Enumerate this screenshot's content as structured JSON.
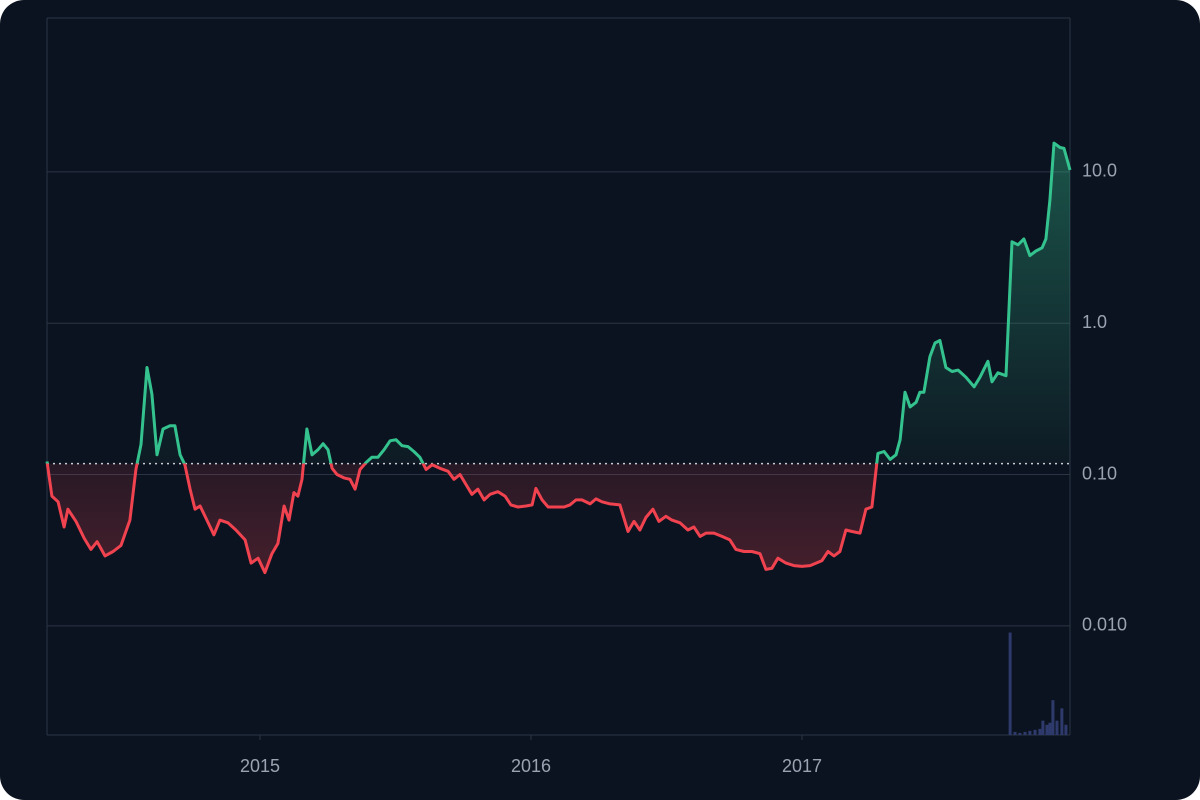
{
  "chart_data": {
    "type": "baseline",
    "log_scale": true,
    "grid": true,
    "xlim": [
      2014.214,
      2017.989
    ],
    "xticks": [
      2015,
      2016,
      2017
    ],
    "ylim": [
      0.0019,
      104
    ],
    "yticks": [
      {
        "value": 10,
        "label": "10.0"
      },
      {
        "value": 1,
        "label": "1.0"
      },
      {
        "value": 0.1,
        "label": "0.10"
      },
      {
        "value": 0.01,
        "label": "0.010"
      }
    ],
    "baseline": 0.118,
    "up_color": "#34c38f",
    "down_color": "#f0424f",
    "x": [
      2014.214,
      2014.232,
      2014.255,
      2014.277,
      2014.291,
      2014.321,
      2014.351,
      2014.376,
      2014.399,
      2014.428,
      2014.458,
      2014.487,
      2014.52,
      2014.542,
      2014.561,
      2014.583,
      2014.601,
      2014.62,
      2014.642,
      2014.668,
      2014.686,
      2014.705,
      2014.723,
      2014.742,
      2014.76,
      2014.779,
      2014.804,
      2014.83,
      2014.852,
      2014.882,
      2014.911,
      2014.945,
      2014.967,
      2014.993,
      2015.018,
      2015.044,
      2015.066,
      2015.089,
      2015.107,
      2015.125,
      2015.14,
      2015.155,
      2015.173,
      2015.192,
      2015.214,
      2015.233,
      2015.251,
      2015.266,
      2015.284,
      2015.31,
      2015.332,
      2015.351,
      2015.369,
      2015.391,
      2015.413,
      2015.435,
      2015.458,
      2015.48,
      2015.502,
      2015.524,
      2015.546,
      2015.568,
      2015.59,
      2015.613,
      2015.635,
      2015.664,
      2015.694,
      2015.716,
      2015.738,
      2015.76,
      2015.782,
      2015.804,
      2015.827,
      2015.849,
      2015.878,
      2015.904,
      2015.926,
      2015.952,
      2015.982,
      2016.004,
      2016.018,
      2016.041,
      2016.063,
      2016.092,
      2016.122,
      2016.144,
      2016.166,
      2016.188,
      2016.218,
      2016.24,
      2016.262,
      2016.292,
      2016.328,
      2016.358,
      2016.38,
      2016.402,
      2016.424,
      2016.45,
      2016.472,
      2016.498,
      2016.52,
      2016.55,
      2016.579,
      2016.601,
      2016.624,
      2016.646,
      2016.675,
      2016.705,
      2016.734,
      2016.756,
      2016.786,
      2016.815,
      2016.845,
      2016.867,
      2016.889,
      2016.911,
      2016.941,
      2016.97,
      2017.0,
      2017.03,
      2017.052,
      2017.074,
      2017.096,
      2017.118,
      2017.14,
      2017.162,
      2017.185,
      2017.214,
      2017.236,
      2017.258,
      2017.28,
      2017.303,
      2017.325,
      2017.347,
      2017.362,
      2017.38,
      2017.399,
      2017.421,
      2017.435,
      2017.45,
      2017.472,
      2017.491,
      2017.509,
      2017.531,
      2017.554,
      2017.576,
      2017.605,
      2017.635,
      2017.657,
      2017.686,
      2017.701,
      2017.723,
      2017.753,
      2017.775,
      2017.797,
      2017.819,
      2017.841,
      2017.863,
      2017.886,
      2017.9,
      2017.915,
      2017.93,
      2017.952,
      2017.967,
      2017.989
    ],
    "values": [
      0.122,
      0.072,
      0.066,
      0.045,
      0.059,
      0.049,
      0.038,
      0.032,
      0.036,
      0.029,
      0.031,
      0.034,
      0.05,
      0.108,
      0.158,
      0.51,
      0.34,
      0.135,
      0.2,
      0.21,
      0.21,
      0.135,
      0.116,
      0.08,
      0.059,
      0.062,
      0.05,
      0.04,
      0.05,
      0.048,
      0.043,
      0.037,
      0.026,
      0.028,
      0.0225,
      0.03,
      0.035,
      0.062,
      0.05,
      0.076,
      0.072,
      0.093,
      0.2,
      0.135,
      0.146,
      0.16,
      0.146,
      0.11,
      0.1,
      0.095,
      0.093,
      0.08,
      0.108,
      0.12,
      0.13,
      0.13,
      0.146,
      0.167,
      0.17,
      0.155,
      0.153,
      0.142,
      0.13,
      0.108,
      0.116,
      0.11,
      0.105,
      0.093,
      0.1,
      0.086,
      0.074,
      0.08,
      0.068,
      0.074,
      0.077,
      0.072,
      0.063,
      0.061,
      0.062,
      0.063,
      0.081,
      0.068,
      0.061,
      0.061,
      0.061,
      0.063,
      0.068,
      0.068,
      0.064,
      0.069,
      0.066,
      0.064,
      0.063,
      0.042,
      0.049,
      0.043,
      0.052,
      0.059,
      0.049,
      0.053,
      0.05,
      0.048,
      0.043,
      0.045,
      0.039,
      0.041,
      0.041,
      0.039,
      0.037,
      0.032,
      0.031,
      0.031,
      0.03,
      0.0236,
      0.024,
      0.028,
      0.026,
      0.025,
      0.0247,
      0.025,
      0.026,
      0.027,
      0.031,
      0.029,
      0.031,
      0.043,
      0.042,
      0.041,
      0.059,
      0.061,
      0.138,
      0.142,
      0.126,
      0.135,
      0.17,
      0.35,
      0.28,
      0.3,
      0.35,
      0.35,
      0.6,
      0.74,
      0.77,
      0.51,
      0.48,
      0.49,
      0.44,
      0.38,
      0.44,
      0.56,
      0.41,
      0.47,
      0.45,
      3.45,
      3.3,
      3.6,
      2.8,
      3.0,
      3.15,
      3.6,
      6.5,
      15.5,
      14.5,
      14.3,
      10.3
    ],
    "volume": {
      "color": "#2e3a6b",
      "y2lim": [
        0,
        700
      ],
      "x": [
        2017.768,
        2017.786,
        2017.804,
        2017.823,
        2017.841,
        2017.86,
        2017.878,
        2017.889,
        2017.904,
        2017.915,
        2017.926,
        2017.941,
        2017.959,
        2017.974
      ],
      "values": [
        100,
        3,
        2,
        3,
        4,
        5,
        6,
        14,
        10,
        12,
        34,
        14,
        26,
        10
      ]
    }
  }
}
